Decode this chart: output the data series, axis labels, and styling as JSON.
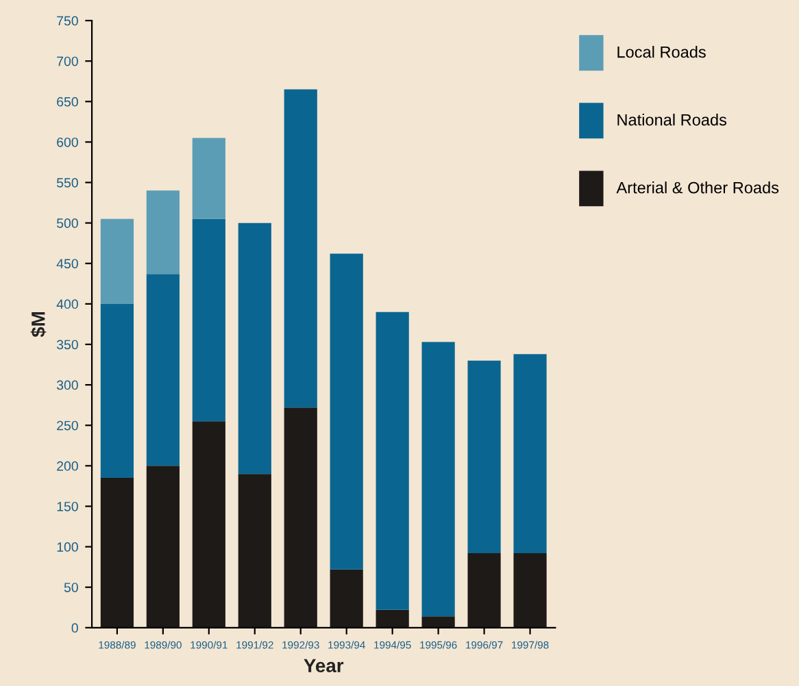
{
  "chart_data": {
    "type": "bar",
    "stacked": true,
    "xlabel": "Year",
    "ylabel": "$M",
    "categories": [
      "1988/89",
      "1989/90",
      "1990/91",
      "1991/92",
      "1992/93",
      "1993/94",
      "1994/95",
      "1995/96",
      "1996/97",
      "1997/98"
    ],
    "series": [
      {
        "name": "Arterial & Other Roads",
        "color": "#1e1a18",
        "values": [
          185,
          200,
          255,
          190,
          272,
          72,
          22,
          14,
          92,
          92
        ]
      },
      {
        "name": "National Roads",
        "color": "#0a6690",
        "values": [
          215,
          237,
          250,
          310,
          393,
          390,
          368,
          339,
          238,
          246
        ]
      },
      {
        "name": "Local Roads",
        "color": "#5b9db5",
        "values": [
          105,
          103,
          100,
          null,
          null,
          null,
          null,
          null,
          null,
          null
        ]
      }
    ],
    "ylim": [
      0,
      750
    ],
    "yticks": [
      0,
      50,
      100,
      150,
      200,
      250,
      300,
      350,
      400,
      450,
      500,
      550,
      600,
      650,
      700,
      750
    ],
    "grid": false,
    "legend": "right"
  }
}
